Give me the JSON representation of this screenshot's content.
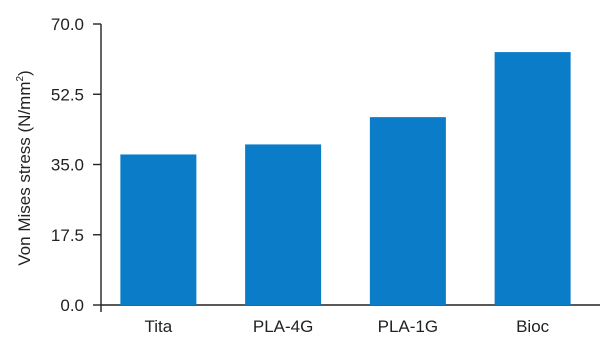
{
  "chart_data": {
    "type": "bar",
    "title": "",
    "xlabel": "",
    "ylabel": {
      "prefix": "Von Mises stress (N/mm",
      "superscript": "2",
      "suffix": ")"
    },
    "categories": [
      "Tita",
      "PLA-4G",
      "PLA-1G",
      "Bioc"
    ],
    "values": [
      37.5,
      40.0,
      46.8,
      63.0
    ],
    "ylim": [
      0,
      70
    ],
    "yticks": [
      "0.0",
      "17.5",
      "35.0",
      "52.5",
      "70.0"
    ],
    "grid": false,
    "bar_color": "#0a7cc8",
    "axis_color": "#222222"
  }
}
